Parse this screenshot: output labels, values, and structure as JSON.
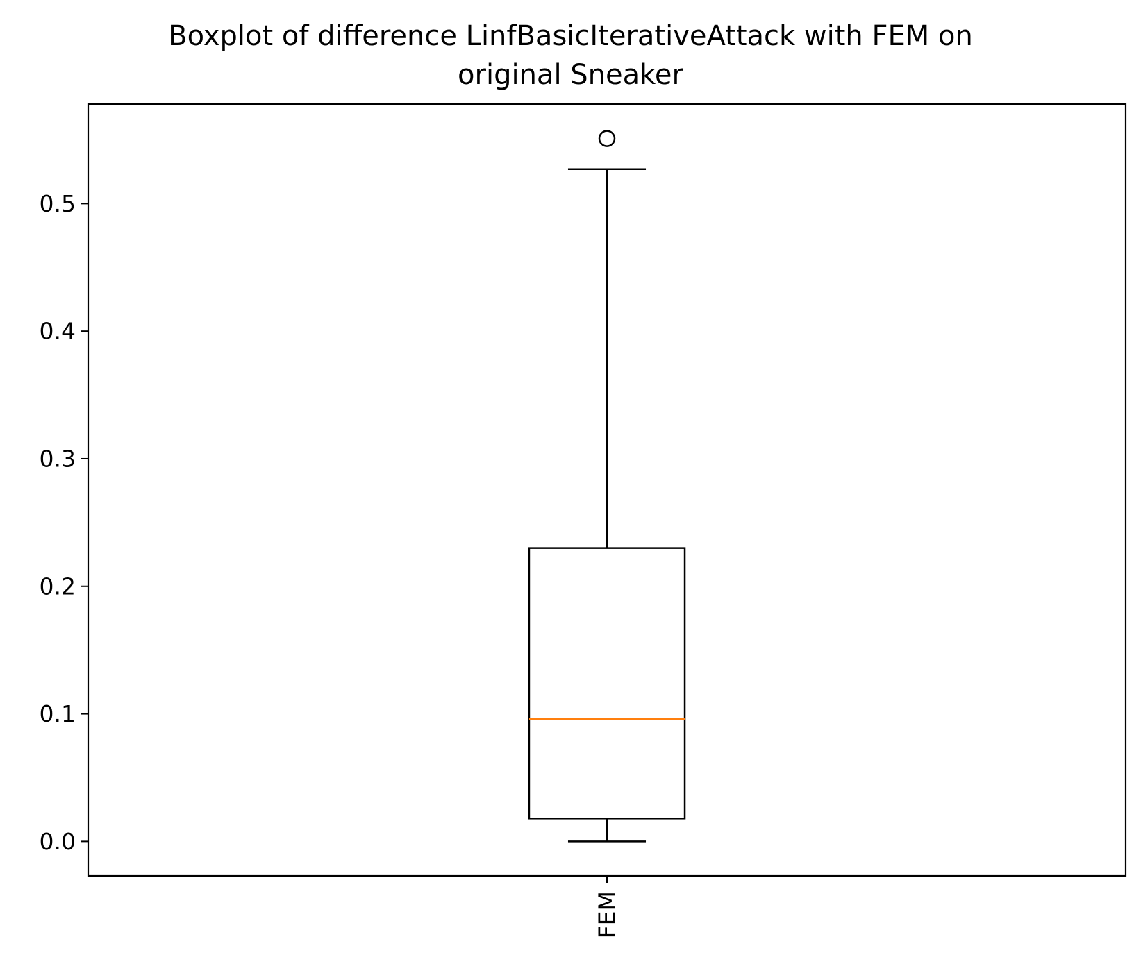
{
  "chart_data": {
    "type": "box",
    "title": "Boxplot of difference LinfBasicIterativeAttack with FEM on original Sneaker",
    "title_lines": [
      "Boxplot of difference LinfBasicIterativeAttack with FEM on",
      "original Sneaker"
    ],
    "categories": [
      "FEM"
    ],
    "boxes": [
      {
        "category": "FEM",
        "whisker_low": 0.0,
        "q1": 0.018,
        "median": 0.096,
        "q3": 0.23,
        "whisker_high": 0.527,
        "outliers": [
          0.551
        ]
      }
    ],
    "ylim": [
      -0.027,
      0.578
    ],
    "yticks": [
      "0.0",
      "0.1",
      "0.2",
      "0.3",
      "0.4",
      "0.5"
    ],
    "xlabel": "",
    "ylabel": "",
    "grid": false,
    "colors": {
      "box": "#000000",
      "median": "#ff7f0e",
      "whisker": "#000000",
      "outlier": "#000000"
    }
  }
}
